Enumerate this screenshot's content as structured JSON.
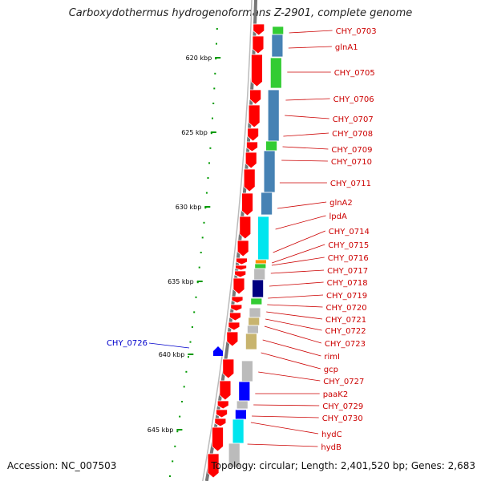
{
  "title": "Carboxydothermus hydrogenoformans Z-2901, complete genome",
  "footer": {
    "accession": "Accession: NC_007503",
    "topology": "Topology: circular; Length: 2,401,520 bp; Genes: 2,683"
  },
  "colors": {
    "forward_gene": "#ff0000",
    "reverse_gene": "#0000ff",
    "label_red": "#cc0000",
    "label_blue": "#0000cc",
    "tick": "#009900"
  },
  "kbp_labels": [
    "620 kbp",
    "625 kbp",
    "630 kbp",
    "635 kbp",
    "640 kbp",
    "645 kbp"
  ],
  "gene_labels": [
    "CHY_0703",
    "glnA1",
    "CHY_0705",
    "CHY_0706",
    "CHY_0707",
    "CHY_0708",
    "CHY_0709",
    "CHY_0710",
    "CHY_0711",
    "glnA2",
    "lpdA",
    "CHY_0714",
    "CHY_0715",
    "CHY_0716",
    "CHY_0717",
    "CHY_0718",
    "CHY_0719",
    "CHY_0720",
    "CHY_0721",
    "CHY_0722",
    "CHY_0723",
    "rimI",
    "gcp",
    "CHY_0727",
    "paaK2",
    "CHY_0729",
    "CHY_0730",
    "hydC",
    "hydB"
  ],
  "reverse_gene_label": "CHY_0726"
}
